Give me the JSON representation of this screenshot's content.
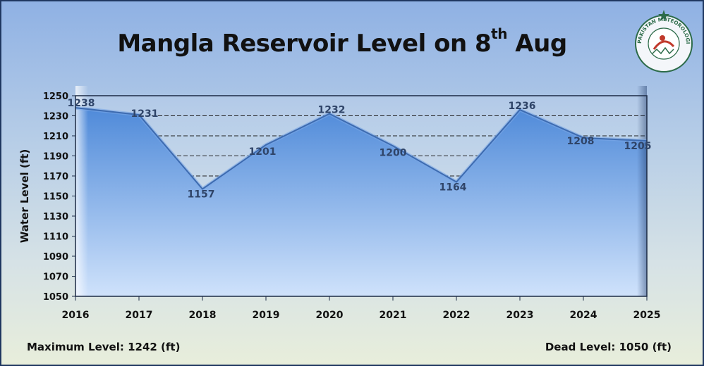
{
  "colors": {
    "area_top": "#4f8ad9",
    "area_bottom": "#cfe2fb",
    "line": "#3d6bb0",
    "plot_border": "#1c2b45",
    "gridline": "#222222",
    "data_label": "#2f4468"
  },
  "logo": {
    "icon": "pakistan-meteorological-department-seal-icon",
    "text": "PAKISTAN METEOROLOGICAL DEPARTMENT"
  },
  "footer": {
    "max_level": "Maximum Level: 1242 (ft)",
    "dead_level": "Dead Level: 1050 (ft)"
  },
  "chart_data": {
    "type": "area",
    "title": "Mangla Reservoir Level on 8",
    "title_sup": "th",
    "title_end": " Aug",
    "xlabel": "",
    "ylabel": "Water Level (ft)",
    "x": [
      "2016",
      "2017",
      "2018",
      "2019",
      "2020",
      "2021",
      "2022",
      "2023",
      "2024",
      "2025"
    ],
    "series": [
      {
        "values": [
          1238,
          1231,
          1157,
          1201,
          1232,
          1200,
          1164,
          1236,
          1208,
          1205
        ]
      }
    ],
    "data_labels": [
      "1238",
      "1231",
      "1157",
      "1201",
      "1232",
      "1200",
      "1164",
      "1236",
      "1208",
      "1205"
    ],
    "ylim": [
      1050,
      1250
    ],
    "yticks": [
      1050,
      1070,
      1090,
      1110,
      1130,
      1150,
      1170,
      1190,
      1210,
      1230,
      1250
    ],
    "grid": "horizontal dashed",
    "legend": "none"
  }
}
